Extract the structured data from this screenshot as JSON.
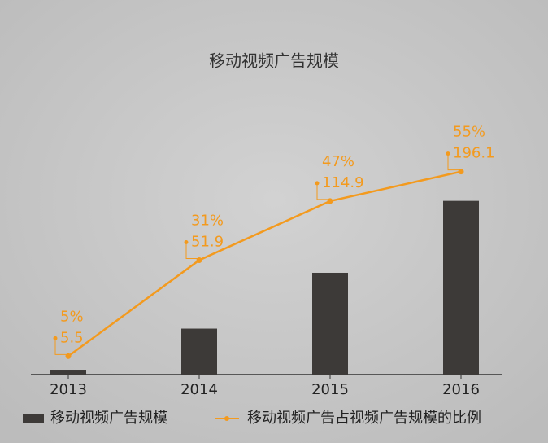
{
  "chart_data": {
    "type": "bar-line",
    "title": "移动视频广告规模",
    "categories": [
      "2013",
      "2014",
      "2015",
      "2016"
    ],
    "series": [
      {
        "name": "移动视频广告规模",
        "color": "#3d3a38",
        "values": [
          5.5,
          51.9,
          114.9,
          196.1
        ]
      },
      {
        "name": "移动视频广告占视频广告规模的比例",
        "color": "#f39a1e",
        "values": [
          5,
          31,
          47,
          55
        ],
        "value_labels": [
          "5%",
          "31%",
          "47%",
          "55%"
        ],
        "axis": "y2"
      }
    ],
    "ylim": [
      0,
      250
    ],
    "y2lim": [
      0,
      60
    ],
    "legend": "bottom"
  }
}
